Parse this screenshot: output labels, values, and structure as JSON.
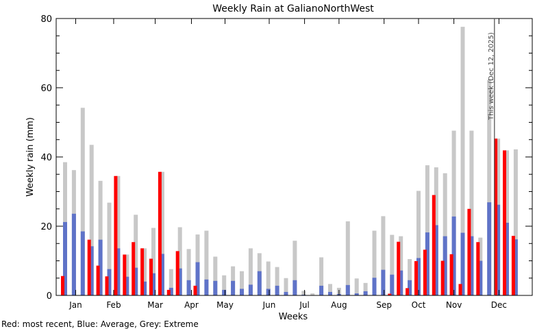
{
  "chart_data": {
    "type": "bar",
    "title": "Weekly Rain at GalianoNorthWest",
    "xlabel": "Weeks",
    "ylabel": "Weekly rain (mm)",
    "ylim": [
      0,
      80
    ],
    "yticks": [
      "0",
      "20",
      "40",
      "60",
      "80"
    ],
    "months": [
      "Jan",
      "Feb",
      "Mar",
      "Apr",
      "May",
      "Jun",
      "Jul",
      "Aug",
      "Sep",
      "Oct",
      "Nov",
      "Dec"
    ],
    "month_week": [
      2.2,
      6.5,
      11.2,
      15.3,
      19.1,
      24.1,
      28.1,
      32.0,
      37.1,
      41.0,
      45.0,
      50.1
    ],
    "weeks": 52,
    "legend_note": "Red: most recent, Blue: Average, Grey: Extreme",
    "annotation": {
      "text": "This week (Dec 12, 2025)",
      "week": 49.9
    },
    "colors": {
      "most_recent": "#ff0000",
      "average": "#5f73c8",
      "extreme": "#c8c8c8"
    },
    "series": [
      {
        "name": "Extreme",
        "values": [
          38.5,
          36.2,
          54.2,
          43.5,
          33.1,
          26.8,
          34.5,
          11.8,
          23.3,
          13.6,
          19.5,
          35.7,
          7.6,
          19.7,
          13.4,
          17.6,
          18.7,
          11.2,
          5.8,
          8.4,
          7.0,
          13.6,
          12.2,
          9.8,
          8.2,
          5.0,
          15.8,
          1.3,
          0.6,
          11.0,
          3.3,
          2.2,
          21.4,
          4.9,
          3.6,
          18.7,
          22.9,
          17.5,
          17.1,
          10.5,
          30.2,
          37.6,
          37.0,
          35.3,
          47.6,
          77.6,
          47.6,
          16.7,
          62.3,
          45.3,
          41.9,
          42.2
        ]
      },
      {
        "name": "Average",
        "values": [
          21.2,
          23.6,
          18.5,
          14.2,
          16.1,
          7.6,
          13.6,
          5.4,
          8.0,
          4.0,
          6.4,
          12.0,
          2.2,
          7.8,
          4.4,
          9.6,
          4.6,
          4.2,
          1.6,
          4.2,
          1.9,
          3.1,
          7.0,
          1.9,
          2.8,
          1.0,
          4.4,
          0.2,
          0,
          2.8,
          1.0,
          0.4,
          3.0,
          0.6,
          1.2,
          5.1,
          7.4,
          6.0,
          7.2,
          4.4,
          10.8,
          18.2,
          20.3,
          17.1,
          22.8,
          18.1,
          17.1,
          10.0,
          26.9,
          26.2,
          21.0,
          16.2
        ]
      },
      {
        "name": "Most recent",
        "values": [
          5.6,
          0,
          0,
          16.1,
          8.6,
          5.5,
          34.5,
          11.8,
          15.4,
          13.6,
          10.6,
          35.7,
          1.6,
          12.8,
          0,
          2.8,
          0,
          0,
          0,
          0,
          0,
          0,
          0,
          0,
          0,
          0,
          0,
          0,
          0,
          0,
          0,
          0,
          0,
          0,
          0,
          0,
          0,
          0.5,
          15.5,
          2.1,
          9.9,
          13.2,
          29.0,
          10.0,
          11.9,
          3.3,
          25.0,
          15.4,
          0,
          45.3,
          41.9,
          17.2
        ]
      }
    ]
  }
}
